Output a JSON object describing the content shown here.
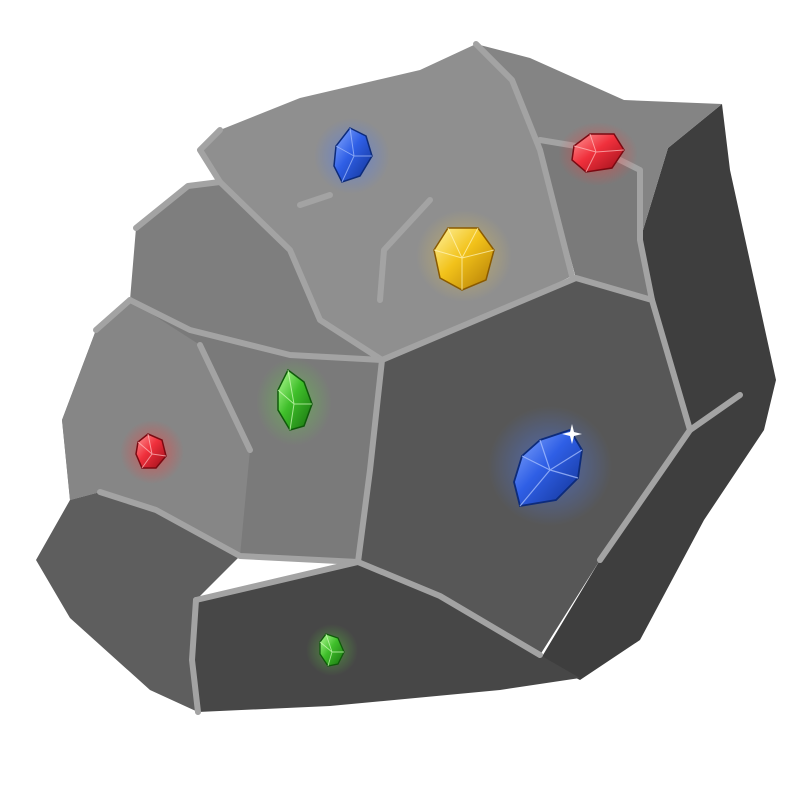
{
  "scene": {
    "subject": "gem-ore-rock",
    "palette": {
      "background": "#ffffff",
      "rock_light": "#8e8e8e",
      "rock_mid": "#7c7c7c",
      "rock_dark": "#5c5c5c",
      "rock_darker": "#4d4d4d",
      "rock_shadow": "#3c3c3c",
      "crack": "#a6a6a6",
      "sapphire": "#2f5fe6",
      "ruby": "#f0303c",
      "topaz": "#f2c21a",
      "emerald": "#3fbf2a"
    },
    "gems": [
      {
        "id": "sapphire-small",
        "icon": "sapphire-gem-icon",
        "color": "sapphire"
      },
      {
        "id": "ruby-top",
        "icon": "ruby-gem-icon",
        "color": "ruby"
      },
      {
        "id": "topaz",
        "icon": "topaz-gem-icon",
        "color": "topaz"
      },
      {
        "id": "emerald-mid",
        "icon": "emerald-gem-icon",
        "color": "emerald"
      },
      {
        "id": "ruby-left",
        "icon": "ruby-gem-icon",
        "color": "ruby"
      },
      {
        "id": "sapphire-large",
        "icon": "sapphire-gem-icon",
        "color": "sapphire"
      },
      {
        "id": "emerald-small",
        "icon": "emerald-gem-icon",
        "color": "emerald"
      }
    ]
  }
}
